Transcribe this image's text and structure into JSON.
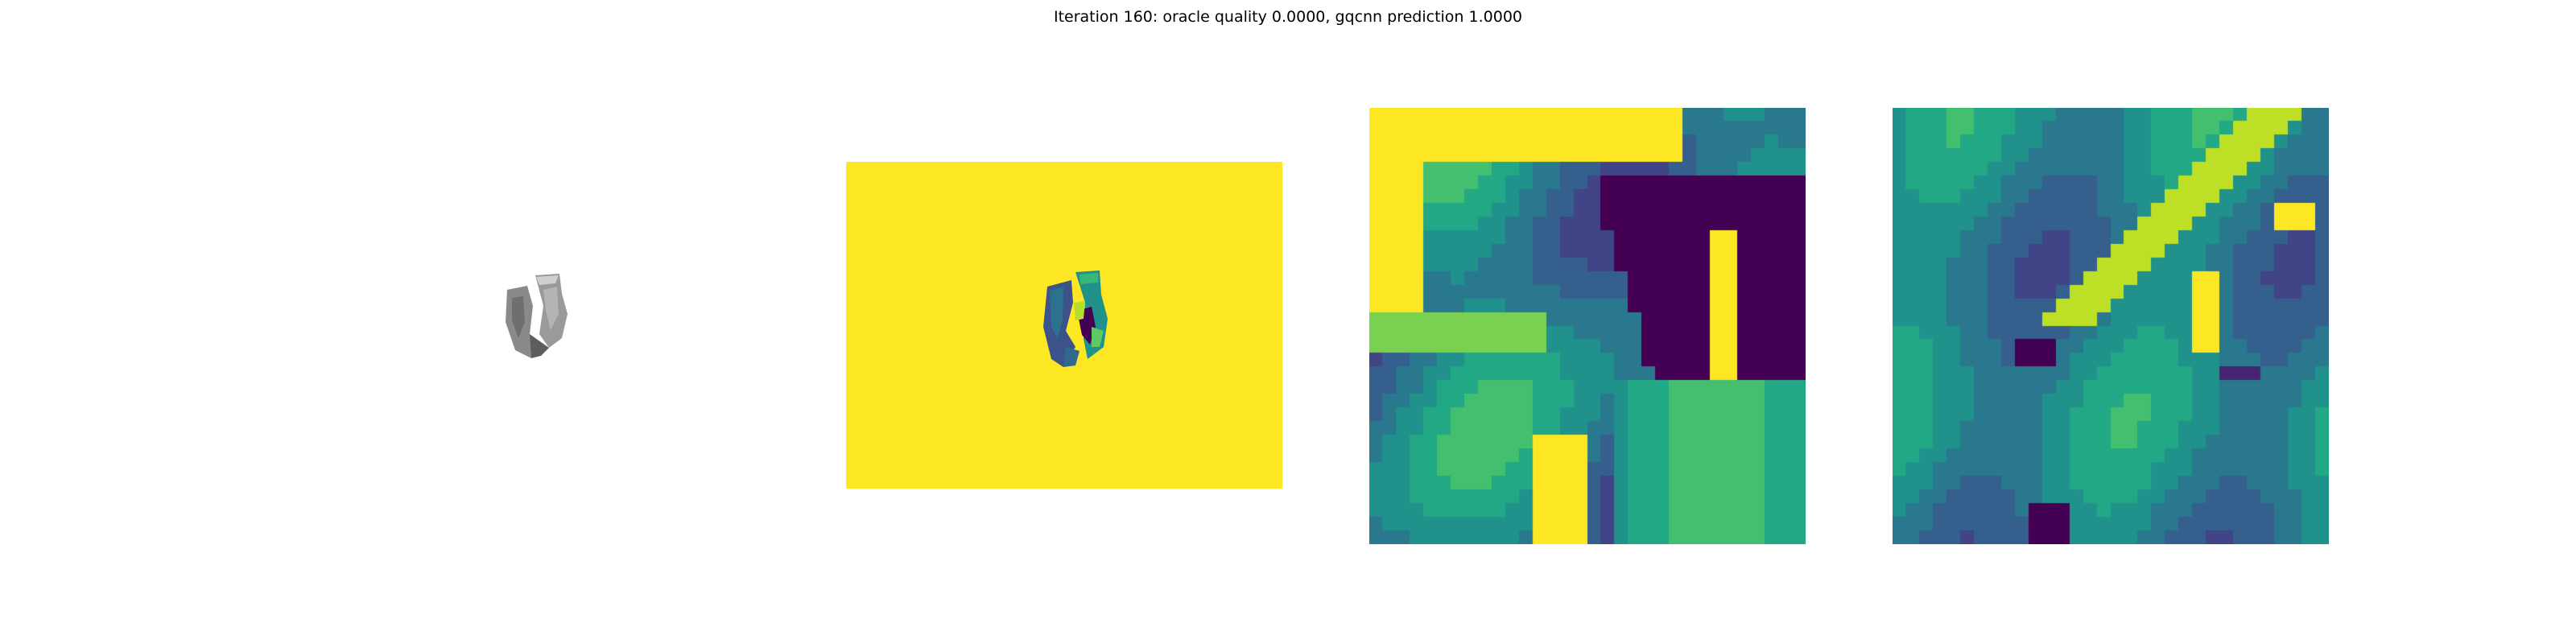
{
  "figure": {
    "title": "Iteration 160: oracle quality 0.0000, gqcnn prediction 1.0000"
  },
  "panels": [
    {
      "id": "render",
      "kind": "grayscale object render"
    },
    {
      "id": "depth",
      "kind": "depth image",
      "colormap": "viridis"
    },
    {
      "id": "crop_a",
      "kind": "depth crop",
      "colormap": "viridis"
    },
    {
      "id": "crop_b",
      "kind": "depth crop",
      "colormap": "viridis"
    }
  ],
  "colors": {
    "viridis": [
      "#440154",
      "#482475",
      "#414487",
      "#355f8d",
      "#2a788e",
      "#21918c",
      "#22a884",
      "#44bf70",
      "#7ad151",
      "#bddf26",
      "#fde725"
    ],
    "object_gray": "#8a8a8a"
  }
}
